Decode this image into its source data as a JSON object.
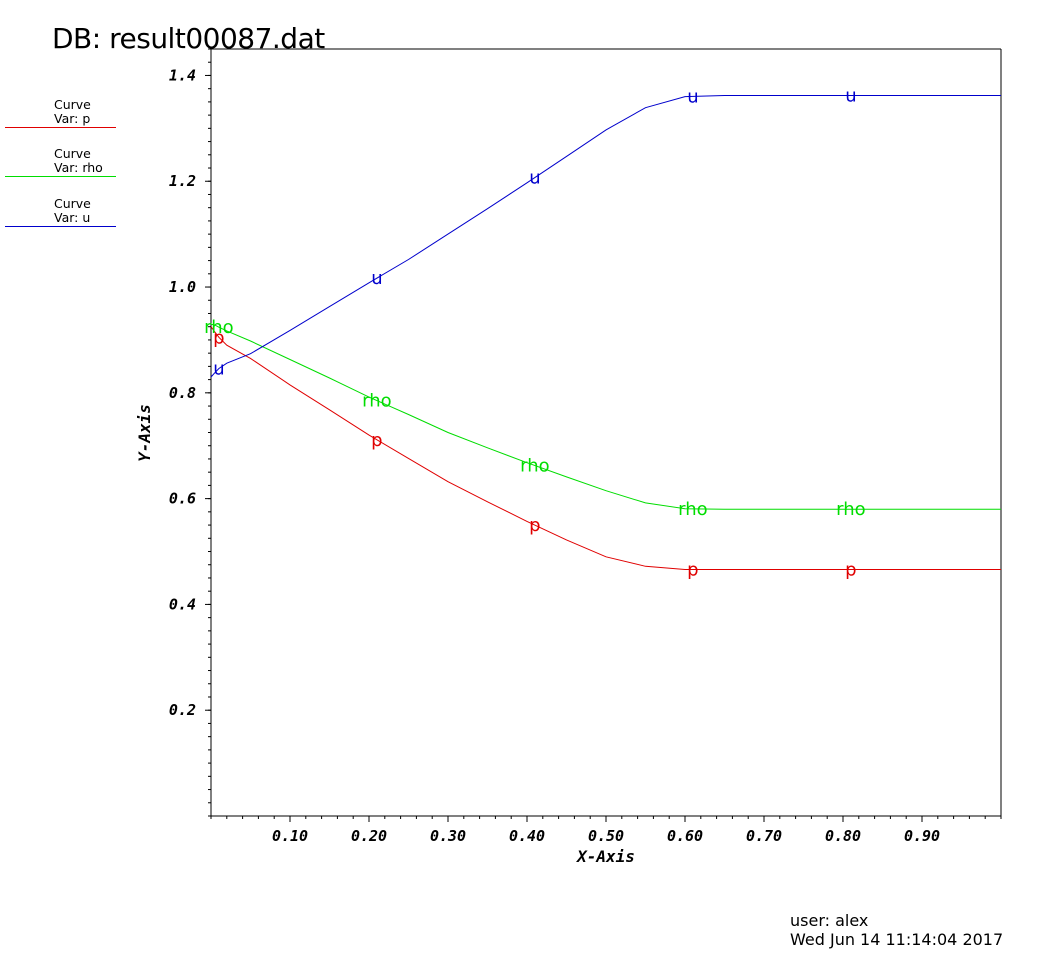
{
  "header": {
    "title": "DB: result00087.dat"
  },
  "legend": [
    {
      "line1": "Curve",
      "line2": "Var: p",
      "color": "#e00000"
    },
    {
      "line1": "Curve",
      "line2": "Var: rho",
      "color": "#00dd00"
    },
    {
      "line1": "Curve",
      "line2": "Var: u",
      "color": "#0000cc"
    }
  ],
  "footer": {
    "user": "user: alex",
    "timestamp": "Wed Jun 14 11:14:04 2017"
  },
  "chart_data": {
    "type": "line",
    "title": "DB: result00087.dat",
    "xlabel": "X-Axis",
    "ylabel": "Y-Axis",
    "xlim": [
      0.0,
      1.0
    ],
    "ylim": [
      0.0,
      1.45
    ],
    "xticks": [
      0.1,
      0.2,
      0.3,
      0.4,
      0.5,
      0.6,
      0.7,
      0.8,
      0.9
    ],
    "xtick_labels": [
      "0.10",
      "0.20",
      "0.30",
      "0.40",
      "0.50",
      "0.60",
      "0.70",
      "0.80",
      "0.90"
    ],
    "yticks": [
      0.2,
      0.4,
      0.6,
      0.8,
      1.0,
      1.2,
      1.4
    ],
    "ytick_labels": [
      "0.2",
      "0.4",
      "0.6",
      "0.8",
      "1.0",
      "1.2",
      "1.4"
    ],
    "grid": false,
    "legend_placement": "left",
    "series": [
      {
        "name": "p",
        "color": "#e00000",
        "label_text": "p",
        "label_x": [
          0.01,
          0.21,
          0.41,
          0.61,
          0.81
        ],
        "x": [
          0.0,
          0.005,
          0.01,
          0.02,
          0.05,
          0.1,
          0.15,
          0.2,
          0.25,
          0.3,
          0.35,
          0.4,
          0.45,
          0.5,
          0.55,
          0.6,
          0.65,
          0.7,
          0.75,
          0.8,
          0.85,
          0.9,
          0.95,
          1.0
        ],
        "y": [
          0.925,
          0.915,
          0.905,
          0.89,
          0.865,
          0.815,
          0.768,
          0.72,
          0.676,
          0.632,
          0.594,
          0.557,
          0.522,
          0.49,
          0.472,
          0.466,
          0.466,
          0.466,
          0.466,
          0.466,
          0.466,
          0.466,
          0.466,
          0.466
        ]
      },
      {
        "name": "rho",
        "color": "#00dd00",
        "label_text": "rho",
        "label_x": [
          0.01,
          0.21,
          0.41,
          0.61,
          0.81
        ],
        "x": [
          0.0,
          0.005,
          0.01,
          0.02,
          0.05,
          0.1,
          0.15,
          0.2,
          0.25,
          0.3,
          0.35,
          0.4,
          0.45,
          0.5,
          0.55,
          0.6,
          0.65,
          0.7,
          0.75,
          0.8,
          0.85,
          0.9,
          0.95,
          1.0
        ],
        "y": [
          0.93,
          0.928,
          0.924,
          0.917,
          0.898,
          0.863,
          0.828,
          0.792,
          0.759,
          0.725,
          0.696,
          0.668,
          0.641,
          0.615,
          0.592,
          0.581,
          0.58,
          0.58,
          0.58,
          0.58,
          0.58,
          0.58,
          0.58,
          0.58
        ]
      },
      {
        "name": "u",
        "color": "#0000cc",
        "label_text": "u",
        "label_x": [
          0.01,
          0.21,
          0.41,
          0.61,
          0.81
        ],
        "x": [
          0.0,
          0.005,
          0.01,
          0.02,
          0.05,
          0.1,
          0.15,
          0.2,
          0.25,
          0.3,
          0.35,
          0.4,
          0.45,
          0.5,
          0.55,
          0.6,
          0.65,
          0.7,
          0.75,
          0.8,
          0.85,
          0.9,
          0.95,
          1.0
        ],
        "y": [
          0.83,
          0.838,
          0.846,
          0.856,
          0.874,
          0.918,
          0.963,
          1.008,
          1.052,
          1.1,
          1.148,
          1.197,
          1.247,
          1.297,
          1.339,
          1.36,
          1.362,
          1.362,
          1.362,
          1.362,
          1.362,
          1.362,
          1.362,
          1.362
        ]
      }
    ]
  }
}
